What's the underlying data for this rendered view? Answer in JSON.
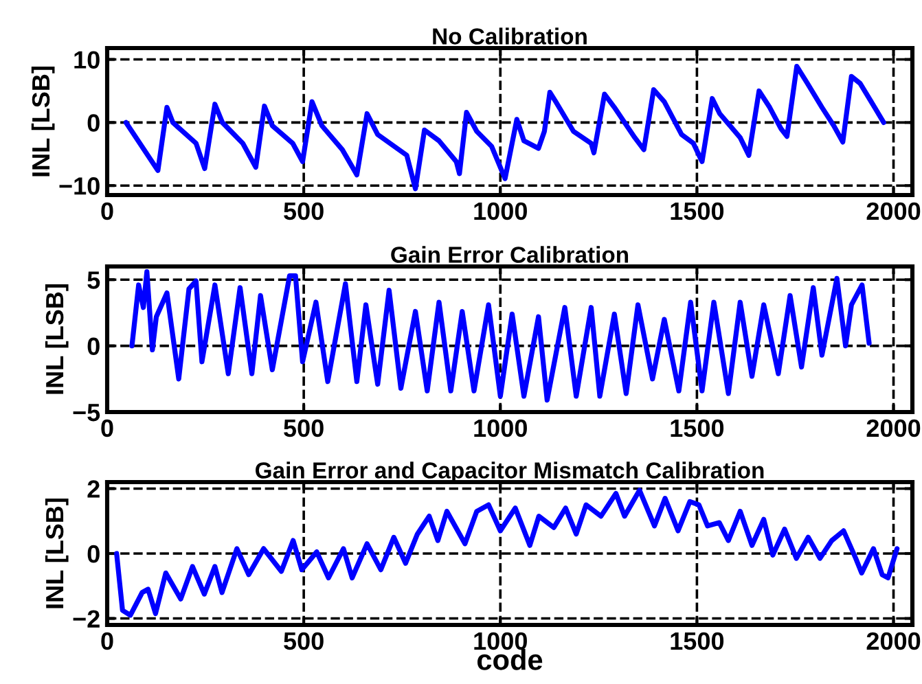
{
  "chart_data": [
    {
      "type": "line",
      "title": "No Calibration",
      "ylabel": "INL [LSB]",
      "xlim": [
        0,
        2048
      ],
      "xticks": [
        0,
        500,
        1000,
        1500,
        2000
      ],
      "ylim": [
        -11.5,
        11.8
      ],
      "yticks": [
        -10,
        0,
        10
      ],
      "grid": true,
      "line_style": "solid",
      "marker": "none",
      "series": [
        {
          "color": "#0000ff",
          "x": [
            48,
            129,
            152,
            167,
            226,
            248,
            274,
            293,
            345,
            378,
            400,
            420,
            472,
            497,
            521,
            546,
            598,
            635,
            661,
            688,
            762,
            784,
            807,
            844,
            888,
            896,
            914,
            940,
            978,
            1012,
            1042,
            1060,
            1097,
            1112,
            1126,
            1141,
            1186,
            1231,
            1238,
            1265,
            1290,
            1342,
            1365,
            1390,
            1417,
            1461,
            1491,
            1513,
            1539,
            1558,
            1610,
            1632,
            1658,
            1685,
            1714,
            1729,
            1754,
            1781,
            1818,
            1848,
            1871,
            1893,
            1915,
            1952,
            1975
          ],
          "values": [
            0,
            -7.6,
            2.4,
            0,
            -3.3,
            -7.3,
            2.9,
            0,
            -3.3,
            -7.1,
            2.6,
            -0.5,
            -3.3,
            -6.2,
            3.3,
            -0.5,
            -4.3,
            -8.3,
            1.4,
            -1.9,
            -5.2,
            -10.5,
            -1.2,
            -2.9,
            -6.2,
            -8.1,
            1.6,
            -1.4,
            -3.8,
            -8.9,
            0.5,
            -2.9,
            -4.1,
            -1.4,
            4.8,
            3.3,
            -1.4,
            -3.3,
            -4.8,
            4.5,
            2.4,
            -2.4,
            -4.3,
            5.2,
            3.3,
            -1.9,
            -3.3,
            -6.2,
            3.8,
            1.4,
            -2.4,
            -5.2,
            5.0,
            2.4,
            -1.0,
            -2.2,
            8.9,
            6.2,
            2.4,
            -0.5,
            -3.1,
            7.3,
            6.2,
            2.4,
            0
          ]
        }
      ]
    },
    {
      "type": "line",
      "title": "Gain Error Calibration",
      "ylabel": "INL [LSB]",
      "xlim": [
        0,
        2048
      ],
      "xticks": [
        0,
        500,
        1000,
        1500,
        2000
      ],
      "ylim": [
        -5,
        6
      ],
      "yticks": [
        -5,
        0,
        5
      ],
      "grid": true,
      "line_style": "solid",
      "marker": "none",
      "series": [
        {
          "color": "#0000ff",
          "x": [
            63,
            80,
            92,
            101,
            115,
            125,
            152,
            182,
            208,
            226,
            241,
            274,
            308,
            338,
            368,
            390,
            420,
            464,
            479,
            497,
            531,
            561,
            606,
            635,
            658,
            688,
            717,
            747,
            784,
            814,
            844,
            874,
            903,
            933,
            970,
            1000,
            1030,
            1060,
            1097,
            1119,
            1164,
            1193,
            1231,
            1253,
            1290,
            1320,
            1350,
            1387,
            1417,
            1454,
            1484,
            1513,
            1543,
            1580,
            1610,
            1640,
            1670,
            1707,
            1737,
            1766,
            1796,
            1818,
            1856,
            1878,
            1893,
            1920,
            1938
          ],
          "values": [
            0,
            4.6,
            2.9,
            5.6,
            -0.3,
            2.2,
            4.0,
            -2.5,
            4.3,
            4.9,
            -1.2,
            4.6,
            -2.1,
            4.4,
            -2.1,
            3.8,
            -1.8,
            5.3,
            5.3,
            -1.2,
            3.3,
            -2.7,
            4.7,
            -2.7,
            3.1,
            -2.9,
            4.2,
            -3.2,
            2.6,
            -3.4,
            3.3,
            -3.4,
            2.6,
            -3.4,
            3.1,
            -3.8,
            2.4,
            -3.8,
            2.2,
            -4.1,
            2.9,
            -3.8,
            2.9,
            -3.8,
            2.4,
            -3.6,
            3.1,
            -2.5,
            2.0,
            -3.4,
            3.3,
            -3.4,
            3.3,
            -3.6,
            3.3,
            -2.3,
            3.1,
            -2.1,
            3.8,
            -1.6,
            4.4,
            -0.7,
            5.1,
            0,
            3.1,
            4.6,
            0.2
          ]
        }
      ]
    },
    {
      "type": "line",
      "title": "Gain Error and Capacitor Mismatch Calibration",
      "xlabel": "code",
      "ylabel": "INL [LSB]",
      "xlim": [
        0,
        2048
      ],
      "xticks": [
        0,
        500,
        1000,
        1500,
        2000
      ],
      "ylim": [
        -2.2,
        2.2
      ],
      "yticks": [
        -2,
        0,
        2
      ],
      "grid": true,
      "line_style": "solid",
      "marker": "none",
      "series": [
        {
          "color": "#0000ff",
          "x": [
            24,
            39,
            59,
            89,
            104,
            123,
            149,
            187,
            217,
            247,
            274,
            292,
            330,
            360,
            398,
            443,
            473,
            495,
            533,
            563,
            601,
            623,
            661,
            696,
            729,
            759,
            789,
            819,
            841,
            864,
            910,
            940,
            970,
            1000,
            1038,
            1075,
            1098,
            1136,
            1166,
            1193,
            1218,
            1256,
            1294,
            1316,
            1354,
            1392,
            1419,
            1452,
            1482,
            1505,
            1527,
            1557,
            1580,
            1610,
            1640,
            1670,
            1693,
            1723,
            1753,
            1783,
            1813,
            1843,
            1873,
            1904,
            1919,
            1949,
            1971,
            1986,
            2009
          ],
          "values": [
            0,
            -1.75,
            -1.9,
            -1.2,
            -1.1,
            -1.85,
            -0.6,
            -1.4,
            -0.4,
            -1.25,
            -0.4,
            -1.2,
            0.15,
            -0.65,
            0.15,
            -0.55,
            0.4,
            -0.5,
            0.05,
            -0.75,
            0.15,
            -0.75,
            0.3,
            -0.5,
            0.5,
            -0.3,
            0.6,
            1.15,
            0.4,
            1.3,
            0.3,
            1.3,
            1.5,
            0.7,
            1.4,
            0.25,
            1.15,
            0.8,
            1.4,
            0.6,
            1.5,
            1.15,
            1.85,
            1.15,
            1.95,
            0.85,
            1.7,
            0.7,
            1.6,
            1.5,
            0.85,
            0.95,
            0.4,
            1.3,
            0.25,
            1.05,
            -0.05,
            0.75,
            -0.15,
            0.5,
            -0.15,
            0.4,
            0.7,
            -0.15,
            -0.6,
            0.15,
            -0.65,
            -0.75,
            0.15
          ]
        }
      ]
    }
  ]
}
